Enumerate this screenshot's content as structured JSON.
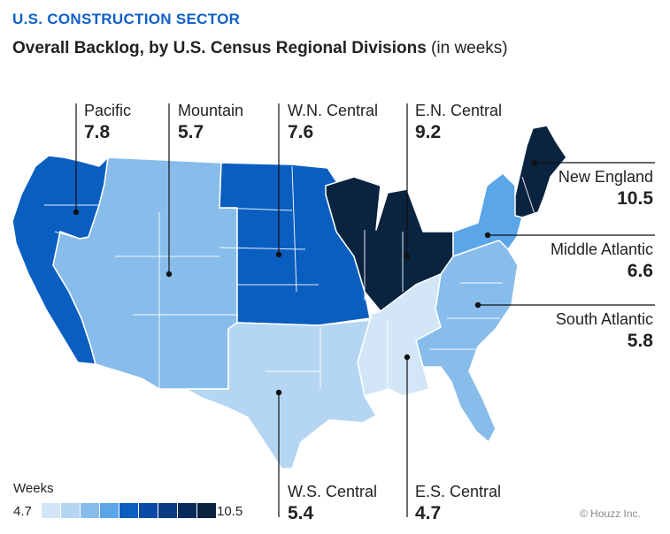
{
  "header": {
    "eyebrow": "U.S. CONSTRUCTION SECTOR",
    "title_bold": "Overall Backlog, by U.S. Census Regional Divisions",
    "title_light": "(in weeks)"
  },
  "regions": {
    "pacific": {
      "name": "Pacific",
      "value": "7.8",
      "color": "#0a5ec0"
    },
    "mountain": {
      "name": "Mountain",
      "value": "5.7",
      "color": "#88bdeb"
    },
    "wn_central": {
      "name": "W.N. Central",
      "value": "7.6",
      "color": "#0a5ec0"
    },
    "en_central": {
      "name": "E.N. Central",
      "value": "9.2",
      "color": "#0a2440"
    },
    "new_england": {
      "name": "New England",
      "value": "10.5",
      "color": "#0a2440"
    },
    "middle_atlantic": {
      "name": "Middle Atlantic",
      "value": "6.6",
      "color": "#5aa6e8"
    },
    "south_atlantic": {
      "name": "South Atlantic",
      "value": "5.8",
      "color": "#88bdeb"
    },
    "ws_central": {
      "name": "W.S. Central",
      "value": "5.4",
      "color": "#b5d6f2"
    },
    "es_central": {
      "name": "E.S. Central",
      "value": "4.7",
      "color": "#d2e6f7"
    }
  },
  "legend": {
    "title": "Weeks",
    "min": "4.7",
    "max": "10.5",
    "colors": [
      "#d2e6f7",
      "#b5d6f2",
      "#88bdeb",
      "#5aa6e8",
      "#0a5ec0",
      "#0a4aa6",
      "#0b3a82",
      "#0a2c5c",
      "#0a2440"
    ]
  },
  "credit": "© Houzz Inc."
}
